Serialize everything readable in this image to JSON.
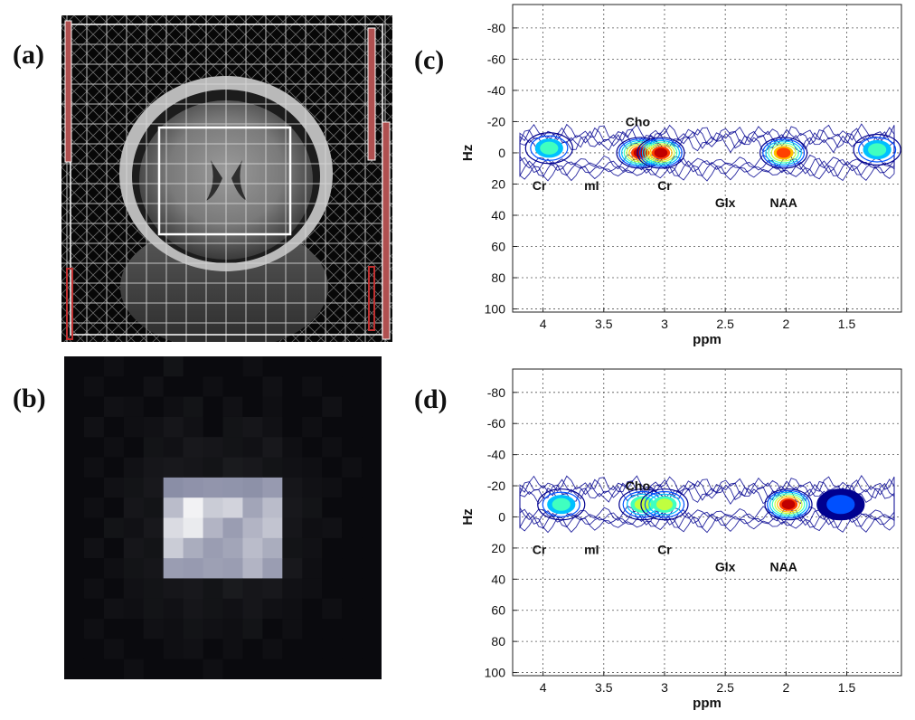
{
  "panel_labels": {
    "a": "(a)",
    "b": "(b)",
    "c": "(c)",
    "d": "(d)"
  },
  "chart_data": [
    {
      "type": "heatmap",
      "panel": "(c)",
      "xlabel": "ppm",
      "ylabel": "Hz",
      "xlim": [
        4.25,
        1.05
      ],
      "ylim": [
        -95,
        102
      ],
      "x_ticks": [
        "4",
        "3.5",
        "3",
        "2.5",
        "2",
        "1.5"
      ],
      "y_ticks": [
        "-80",
        "-60",
        "-40",
        "-20",
        "0",
        "20",
        "40",
        "60",
        "80",
        "100"
      ],
      "grid": true,
      "peak_labels": [
        {
          "text": "Cho",
          "ppm": 3.22,
          "hz": -20
        },
        {
          "text": "Cr",
          "ppm": 4.03,
          "hz": 21
        },
        {
          "text": "mI",
          "ppm": 3.6,
          "hz": 21
        },
        {
          "text": "Cr",
          "ppm": 3.0,
          "hz": 21
        },
        {
          "text": "Glx",
          "ppm": 2.5,
          "hz": 32
        },
        {
          "text": "NAA",
          "ppm": 2.02,
          "hz": 32
        }
      ],
      "peaks": [
        {
          "ppm": 3.2,
          "hz": 0,
          "intensity": 1.0
        },
        {
          "ppm": 3.03,
          "hz": 0,
          "intensity": 0.95
        },
        {
          "ppm": 2.02,
          "hz": 0,
          "intensity": 0.9
        },
        {
          "ppm": 3.95,
          "hz": -3,
          "intensity": 0.5
        },
        {
          "ppm": 1.25,
          "hz": -2,
          "intensity": 0.45
        }
      ]
    },
    {
      "type": "heatmap",
      "panel": "(d)",
      "xlabel": "ppm",
      "ylabel": "Hz",
      "xlim": [
        4.25,
        1.05
      ],
      "ylim": [
        -95,
        102
      ],
      "x_ticks": [
        "4",
        "3.5",
        "3",
        "2.5",
        "2",
        "1.5"
      ],
      "y_ticks": [
        "-80",
        "-60",
        "-40",
        "-20",
        "0",
        "20",
        "40",
        "60",
        "80",
        "100"
      ],
      "grid": true,
      "peak_labels": [
        {
          "text": "Cho",
          "ppm": 3.22,
          "hz": -20
        },
        {
          "text": "Cr",
          "ppm": 4.03,
          "hz": 21
        },
        {
          "text": "mI",
          "ppm": 3.6,
          "hz": 21
        },
        {
          "text": "Cr",
          "ppm": 3.0,
          "hz": 21
        },
        {
          "text": "Glx",
          "ppm": 2.5,
          "hz": 32
        },
        {
          "text": "NAA",
          "ppm": 2.02,
          "hz": 32
        }
      ],
      "peaks": [
        {
          "ppm": 3.85,
          "hz": -8,
          "intensity": 0.55
        },
        {
          "ppm": 3.18,
          "hz": -8,
          "intensity": 0.6
        },
        {
          "ppm": 3.0,
          "hz": -8,
          "intensity": 0.6
        },
        {
          "ppm": 1.98,
          "hz": -8,
          "intensity": 1.0
        },
        {
          "ppm": 1.55,
          "hz": -8,
          "intensity": 0.3
        }
      ]
    }
  ],
  "colors": {
    "contour_scale": [
      "#00008f",
      "#0050ff",
      "#00c0ff",
      "#40ffc0",
      "#c0ff40",
      "#ffc000",
      "#ff4000",
      "#c00000"
    ],
    "mri_grid": "#cfcfcf",
    "roi_box": "#ffffff",
    "marker_red": "#c03030"
  },
  "metabolite_map": {
    "grid_size": 16,
    "intensities": [
      [
        0.0,
        0.0,
        0.02,
        0.0,
        0.0,
        0.04,
        0.0,
        0.0,
        0.0,
        0.02,
        0.0,
        0.0,
        0.0,
        0.0,
        0.0,
        0.0
      ],
      [
        0.0,
        0.02,
        0.0,
        0.0,
        0.03,
        0.0,
        0.0,
        0.02,
        0.0,
        0.0,
        0.03,
        0.0,
        0.02,
        0.0,
        0.0,
        0.0
      ],
      [
        0.0,
        0.0,
        0.03,
        0.02,
        0.0,
        0.02,
        0.04,
        0.0,
        0.03,
        0.0,
        0.02,
        0.0,
        0.0,
        0.03,
        0.0,
        0.0
      ],
      [
        0.0,
        0.03,
        0.0,
        0.02,
        0.03,
        0.05,
        0.03,
        0.0,
        0.04,
        0.05,
        0.03,
        0.0,
        0.02,
        0.0,
        0.0,
        0.0
      ],
      [
        0.0,
        0.0,
        0.02,
        0.0,
        0.04,
        0.03,
        0.06,
        0.05,
        0.04,
        0.03,
        0.06,
        0.02,
        0.0,
        0.02,
        0.0,
        0.0
      ],
      [
        0.0,
        0.02,
        0.0,
        0.03,
        0.05,
        0.06,
        0.05,
        0.04,
        0.07,
        0.06,
        0.04,
        0.03,
        0.02,
        0.0,
        0.02,
        0.0
      ],
      [
        0.0,
        0.0,
        0.03,
        0.04,
        0.06,
        0.3,
        0.33,
        0.35,
        0.34,
        0.32,
        0.38,
        0.05,
        0.03,
        0.02,
        0.0,
        0.0
      ],
      [
        0.0,
        0.02,
        0.0,
        0.05,
        0.04,
        0.6,
        0.95,
        0.7,
        0.75,
        0.45,
        0.6,
        0.06,
        0.04,
        0.0,
        0.0,
        0.0
      ],
      [
        0.0,
        0.0,
        0.04,
        0.03,
        0.06,
        0.8,
        0.9,
        0.55,
        0.4,
        0.55,
        0.65,
        0.05,
        0.02,
        0.03,
        0.0,
        0.0
      ],
      [
        0.0,
        0.03,
        0.0,
        0.05,
        0.04,
        0.7,
        0.5,
        0.4,
        0.45,
        0.6,
        0.5,
        0.04,
        0.03,
        0.0,
        0.0,
        0.0
      ],
      [
        0.0,
        0.0,
        0.02,
        0.04,
        0.05,
        0.4,
        0.38,
        0.42,
        0.4,
        0.55,
        0.4,
        0.06,
        0.02,
        0.0,
        0.0,
        0.0
      ],
      [
        0.0,
        0.02,
        0.0,
        0.03,
        0.04,
        0.05,
        0.06,
        0.04,
        0.07,
        0.05,
        0.06,
        0.03,
        0.02,
        0.0,
        0.0,
        0.0
      ],
      [
        0.0,
        0.0,
        0.03,
        0.02,
        0.04,
        0.03,
        0.05,
        0.04,
        0.03,
        0.05,
        0.03,
        0.02,
        0.0,
        0.02,
        0.0,
        0.0
      ],
      [
        0.0,
        0.02,
        0.0,
        0.0,
        0.03,
        0.02,
        0.04,
        0.03,
        0.02,
        0.04,
        0.0,
        0.02,
        0.0,
        0.0,
        0.0,
        0.0
      ],
      [
        0.0,
        0.0,
        0.02,
        0.0,
        0.0,
        0.02,
        0.03,
        0.0,
        0.02,
        0.0,
        0.02,
        0.0,
        0.0,
        0.0,
        0.0,
        0.0
      ],
      [
        0.0,
        0.0,
        0.0,
        0.02,
        0.0,
        0.0,
        0.0,
        0.02,
        0.0,
        0.0,
        0.0,
        0.0,
        0.0,
        0.0,
        0.0,
        0.0
      ]
    ]
  }
}
